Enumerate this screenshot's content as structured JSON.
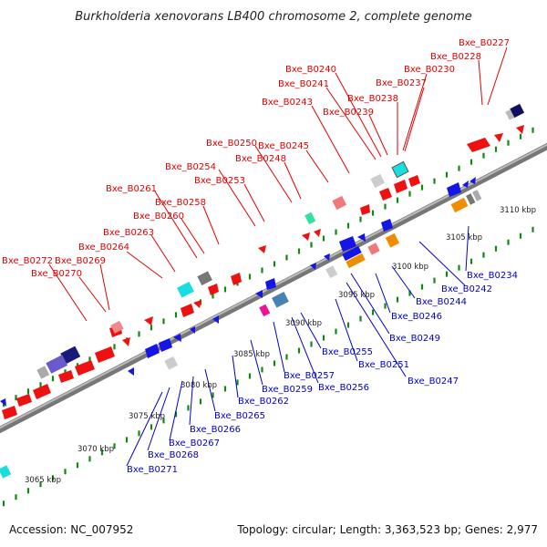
{
  "title": "Burkholderia xenovorans LB400 chromosome 2, complete genome",
  "accession_label": "Accession: NC_007952",
  "summary_label": "Topology: circular; Length: 3,363,523 bp; Genes: 2,977",
  "colors": {
    "forward_gene": "#ee1111",
    "reverse_gene": "#1515e6",
    "highlight_orange": "#f08c00",
    "highlight_cyan": "#19dede",
    "pink_block": "#f06060",
    "magenta_block": "#ee1199",
    "green_tick": "#118811",
    "backbone": "#888888"
  },
  "scale": [
    {
      "label": "3065 kbp"
    },
    {
      "label": "3070 kbp"
    },
    {
      "label": "3075 kbp"
    },
    {
      "label": "3080 kbp"
    },
    {
      "label": "3085 kbp"
    },
    {
      "label": "3090 kbp"
    },
    {
      "label": "3095 kbp"
    },
    {
      "label": "3100 kbp"
    },
    {
      "label": "3105 kbp"
    },
    {
      "label": "3110 kbp"
    }
  ],
  "upper_genes": [
    {
      "label": "Bxe_B0227"
    },
    {
      "label": "Bxe_B0228"
    },
    {
      "label": "Bxe_B0230"
    },
    {
      "label": "Bxe_B0237"
    },
    {
      "label": "Bxe_B0238"
    },
    {
      "label": "Bxe_B0239"
    },
    {
      "label": "Bxe_B0240"
    },
    {
      "label": "Bxe_B0241"
    },
    {
      "label": "Bxe_B0243"
    },
    {
      "label": "Bxe_B0245"
    },
    {
      "label": "Bxe_B0248"
    },
    {
      "label": "Bxe_B0250"
    },
    {
      "label": "Bxe_B0253"
    },
    {
      "label": "Bxe_B0254"
    },
    {
      "label": "Bxe_B0258"
    },
    {
      "label": "Bxe_B0260"
    },
    {
      "label": "Bxe_B0261"
    },
    {
      "label": "Bxe_B0263"
    },
    {
      "label": "Bxe_B0264"
    },
    {
      "label": "Bxe_B0269"
    },
    {
      "label": "Bxe_B0270"
    },
    {
      "label": "Bxe_B0272"
    }
  ],
  "lower_genes": [
    {
      "label": "Bxe_B0234"
    },
    {
      "label": "Bxe_B0242"
    },
    {
      "label": "Bxe_B0244"
    },
    {
      "label": "Bxe_B0246"
    },
    {
      "label": "Bxe_B0249"
    },
    {
      "label": "Bxe_B0251"
    },
    {
      "label": "Bxe_B0247"
    },
    {
      "label": "Bxe_B0255"
    },
    {
      "label": "Bxe_B0256"
    },
    {
      "label": "Bxe_B0257"
    },
    {
      "label": "Bxe_B0259"
    },
    {
      "label": "Bxe_B0262"
    },
    {
      "label": "Bxe_B0265"
    },
    {
      "label": "Bxe_B0266"
    },
    {
      "label": "Bxe_B0267"
    },
    {
      "label": "Bxe_B0268"
    },
    {
      "label": "Bxe_B0271"
    }
  ]
}
